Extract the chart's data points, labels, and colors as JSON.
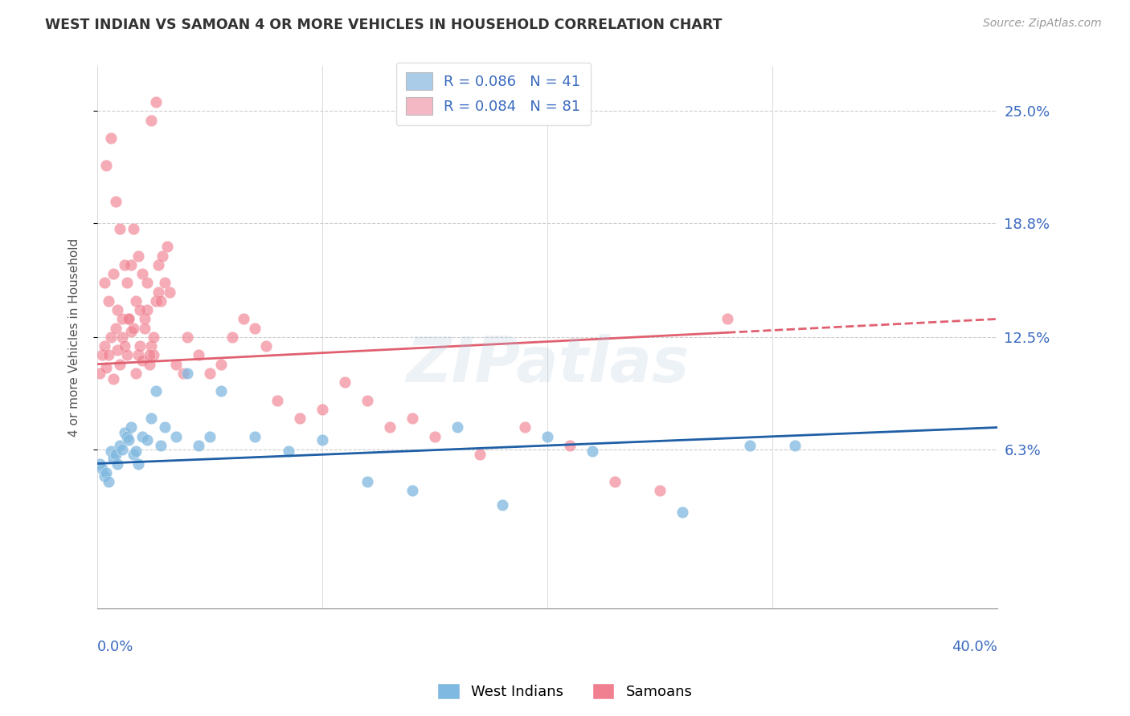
{
  "title": "WEST INDIAN VS SAMOAN 4 OR MORE VEHICLES IN HOUSEHOLD CORRELATION CHART",
  "source": "Source: ZipAtlas.com",
  "ylabel": "4 or more Vehicles in Household",
  "ytick_values": [
    6.3,
    12.5,
    18.8,
    25.0
  ],
  "ytick_labels": [
    "6.3%",
    "12.5%",
    "18.8%",
    "25.0%"
  ],
  "xmin": 0.0,
  "xmax": 40.0,
  "ymin": -2.5,
  "ymax": 27.5,
  "watermark": "ZIPatlas",
  "west_indian_color": "#7fb8e0",
  "samoan_color": "#f08090",
  "west_indian_line_color": "#1f5fa6",
  "samoan_line_color": "#e06070",
  "legend_wi_color": "#aacce8",
  "legend_sa_color": "#f4b8c4",
  "wi_R": "0.086",
  "wi_N": "41",
  "sa_R": "0.084",
  "sa_N": "81",
  "west_indian_x": [
    0.1,
    0.2,
    0.3,
    0.4,
    0.5,
    0.6,
    0.7,
    0.8,
    0.9,
    1.0,
    1.1,
    1.2,
    1.3,
    1.4,
    1.5,
    1.6,
    1.7,
    1.8,
    2.0,
    2.2,
    2.4,
    2.6,
    2.8,
    3.0,
    3.5,
    4.0,
    4.5,
    5.0,
    5.5,
    7.0,
    8.5,
    10.0,
    12.0,
    14.0,
    16.0,
    18.0,
    20.0,
    22.0,
    26.0,
    29.0,
    31.0
  ],
  "west_indian_y": [
    5.5,
    5.2,
    4.8,
    5.0,
    4.5,
    6.2,
    5.8,
    6.0,
    5.5,
    6.5,
    6.3,
    7.2,
    7.0,
    6.8,
    7.5,
    6.0,
    6.2,
    5.5,
    7.0,
    6.8,
    8.0,
    9.5,
    6.5,
    7.5,
    7.0,
    10.5,
    6.5,
    7.0,
    9.5,
    7.0,
    6.2,
    6.8,
    4.5,
    4.0,
    7.5,
    3.2,
    7.0,
    6.2,
    2.8,
    6.5,
    6.5
  ],
  "samoan_x": [
    0.1,
    0.2,
    0.3,
    0.4,
    0.5,
    0.6,
    0.7,
    0.8,
    0.9,
    1.0,
    1.1,
    1.2,
    1.3,
    1.4,
    1.5,
    1.6,
    1.7,
    1.8,
    1.9,
    2.0,
    2.1,
    2.2,
    2.3,
    2.4,
    2.5,
    2.6,
    2.7,
    2.8,
    3.0,
    3.2,
    3.5,
    3.8,
    4.0,
    4.5,
    5.0,
    5.5,
    6.0,
    6.5,
    7.0,
    7.5,
    8.0,
    9.0,
    10.0,
    11.0,
    12.0,
    13.0,
    14.0,
    15.0,
    17.0,
    19.0,
    21.0,
    23.0,
    25.0,
    0.3,
    0.5,
    0.7,
    0.9,
    1.1,
    1.3,
    1.5,
    1.7,
    1.9,
    2.1,
    2.3,
    2.5,
    2.7,
    2.9,
    3.1,
    0.4,
    0.6,
    0.8,
    1.0,
    1.2,
    1.4,
    1.6,
    1.8,
    2.0,
    2.2,
    2.4,
    2.6,
    28.0
  ],
  "samoan_y": [
    10.5,
    11.5,
    12.0,
    10.8,
    11.5,
    12.5,
    10.2,
    13.0,
    11.8,
    11.0,
    12.5,
    12.0,
    11.5,
    13.5,
    12.8,
    13.0,
    10.5,
    11.5,
    12.0,
    11.2,
    13.5,
    14.0,
    11.0,
    12.0,
    11.5,
    14.5,
    15.0,
    14.5,
    15.5,
    15.0,
    11.0,
    10.5,
    12.5,
    11.5,
    10.5,
    11.0,
    12.5,
    13.5,
    13.0,
    12.0,
    9.0,
    8.0,
    8.5,
    10.0,
    9.0,
    7.5,
    8.0,
    7.0,
    6.0,
    7.5,
    6.5,
    4.5,
    4.0,
    15.5,
    14.5,
    16.0,
    14.0,
    13.5,
    15.5,
    16.5,
    14.5,
    14.0,
    13.0,
    11.5,
    12.5,
    16.5,
    17.0,
    17.5,
    22.0,
    23.5,
    20.0,
    18.5,
    16.5,
    13.5,
    18.5,
    17.0,
    16.0,
    15.5,
    24.5,
    25.5,
    13.5
  ]
}
